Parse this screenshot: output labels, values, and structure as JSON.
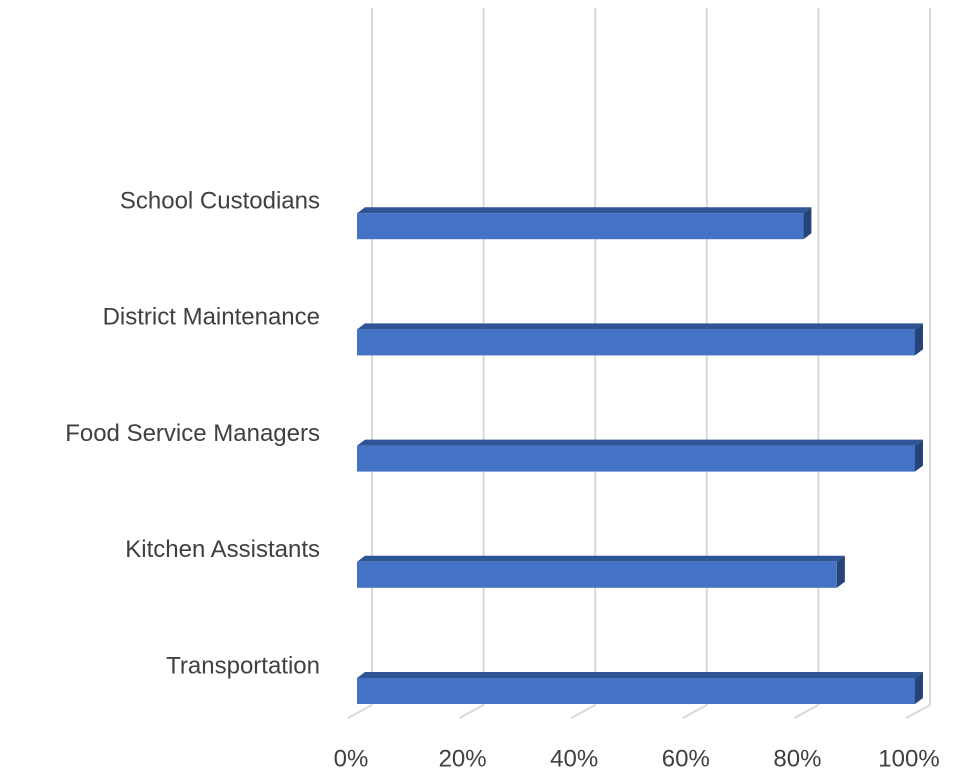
{
  "chart_data": {
    "type": "bar3d",
    "orientation": "horizontal",
    "categories": [
      null,
      "School Custodians",
      "District Maintenance",
      "Food Service Managers",
      "Kitchen Assistants",
      "Transportation"
    ],
    "values": [
      null,
      80,
      100,
      100,
      86,
      100
    ],
    "color": "#4472c4",
    "xlim": [
      0,
      100
    ],
    "xticks": [
      {
        "value": 0,
        "label": "0%"
      },
      {
        "value": 20,
        "label": "20%"
      },
      {
        "value": 40,
        "label": "40%"
      },
      {
        "value": 60,
        "label": "60%"
      },
      {
        "value": 80,
        "label": "80%"
      },
      {
        "value": 100,
        "label": "100%"
      }
    ],
    "grid": true
  }
}
